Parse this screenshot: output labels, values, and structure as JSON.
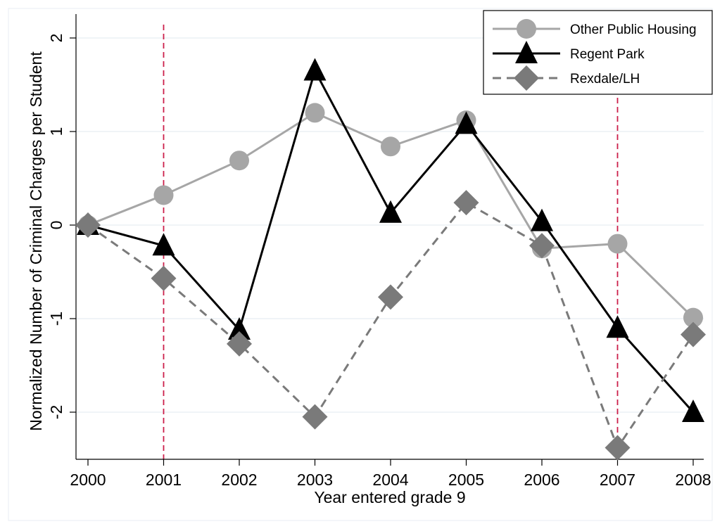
{
  "chart_data": {
    "type": "line",
    "title": "",
    "xlabel": "Year entered grade 9",
    "ylabel": "Normalized Number of Criminal Charges per Student",
    "x": [
      2000,
      2001,
      2002,
      2003,
      2004,
      2005,
      2006,
      2007,
      2008
    ],
    "x_tick_labels": [
      "2000",
      "2001",
      "2002",
      "2003",
      "2004",
      "2005",
      "2006",
      "2007",
      "2008"
    ],
    "xlim": [
      2000,
      2008
    ],
    "ylim": [
      -2.5,
      2.1
    ],
    "y_ticks": [
      -2,
      -1,
      0,
      1,
      2
    ],
    "y_tick_labels": [
      "-2",
      "-1",
      "0",
      "1",
      "2"
    ],
    "grid": true,
    "legend_position": "top-right",
    "vertical_reference_lines": [
      2001,
      2007
    ],
    "reference_line_color": "#cc1f4a",
    "series": [
      {
        "name": "Other Public Housing",
        "values": [
          0,
          0.32,
          0.69,
          1.2,
          0.84,
          1.12,
          -0.25,
          -0.2,
          -0.99
        ],
        "color": "#a6a6a6",
        "marker": "circle",
        "line_style": "solid"
      },
      {
        "name": "Regent Park",
        "values": [
          0,
          -0.22,
          -1.12,
          1.65,
          0.13,
          1.08,
          0.04,
          -1.1,
          -2.0
        ],
        "color": "#000000",
        "marker": "triangle",
        "line_style": "solid"
      },
      {
        "name": "Rexdale/LH",
        "values": [
          0,
          -0.57,
          -1.27,
          -2.05,
          -0.77,
          0.24,
          -0.22,
          -2.38,
          -1.17
        ],
        "color": "#7a7a7a",
        "marker": "diamond",
        "line_style": "dashed"
      }
    ]
  }
}
